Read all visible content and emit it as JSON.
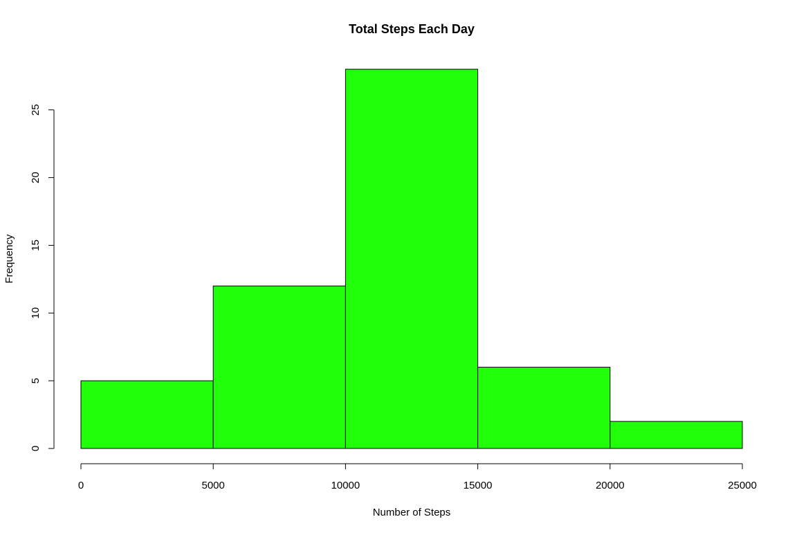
{
  "chart_data": {
    "type": "bar",
    "subtype": "histogram",
    "title": "Total Steps Each Day",
    "xlabel": "Number of Steps",
    "ylabel": "Frequency",
    "bins": [
      {
        "from": 0,
        "to": 5000,
        "count": 5
      },
      {
        "from": 5000,
        "to": 10000,
        "count": 12
      },
      {
        "from": 10000,
        "to": 15000,
        "count": 28
      },
      {
        "from": 15000,
        "to": 20000,
        "count": 6
      },
      {
        "from": 20000,
        "to": 25000,
        "count": 2
      }
    ],
    "xlim": [
      0,
      25000
    ],
    "ylim": [
      0,
      28
    ],
    "x_ticks": [
      "0",
      "5000",
      "10000",
      "15000",
      "20000",
      "25000"
    ],
    "y_ticks": [
      "0",
      "5",
      "10",
      "15",
      "20",
      "25"
    ],
    "bar_color": "#22ff0a",
    "bar_border_color": "#000000",
    "grid": false,
    "legend": "none"
  }
}
